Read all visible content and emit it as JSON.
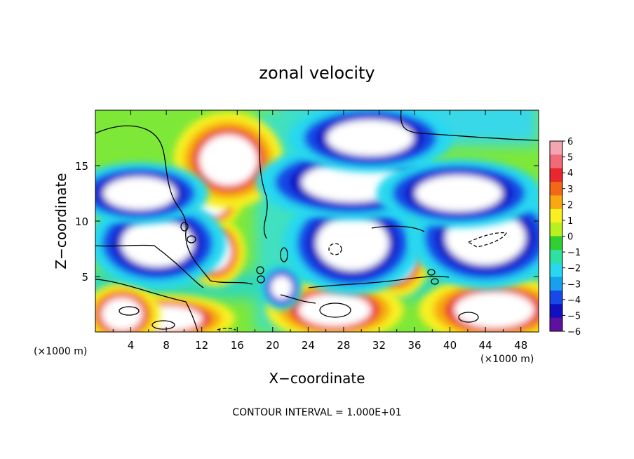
{
  "chart_data": {
    "type": "heatmap",
    "title": "zonal velocity",
    "xlabel": "X−coordinate",
    "ylabel": "Z−coordinate",
    "x_unit_left": "(×1000 m)",
    "x_unit_right": "(×1000 m)",
    "xlim": [
      0,
      50
    ],
    "ylim": [
      0,
      20
    ],
    "x_ticks": [
      4,
      8,
      12,
      16,
      20,
      24,
      28,
      32,
      36,
      40,
      44,
      48
    ],
    "y_ticks": [
      5,
      10,
      15
    ],
    "colorbar": {
      "labels": [
        6,
        5,
        4,
        3,
        2,
        1,
        0,
        -1,
        -2,
        -3,
        -4,
        -5,
        -6
      ],
      "label_text": [
        "6",
        "5",
        "4",
        "3",
        "2",
        "1",
        "0",
        "−1",
        "−2",
        "−3",
        "−4",
        "−5",
        "−6"
      ],
      "colors": [
        "#f4a6b0",
        "#f06a78",
        "#e8282c",
        "#f06818",
        "#f8a810",
        "#f8f020",
        "#b8f020",
        "#30d030",
        "#30e0a0",
        "#28d8f0",
        "#18a0f0",
        "#1848e8",
        "#1010c0",
        "#6010a0"
      ],
      "range": [
        -6,
        6
      ]
    },
    "footer": "CONTOUR INTERVAL = 1.000E+01",
    "regions": [
      {
        "kind": "pos",
        "x": 8,
        "z": 1.2,
        "rx": 5,
        "rz": 1.4
      },
      {
        "kind": "pos",
        "x": 3,
        "z": 1.6,
        "rx": 2.8,
        "rz": 1.8
      },
      {
        "kind": "pos",
        "x": 13.5,
        "z": 7.2,
        "rx": 2.2,
        "rz": 2.0
      },
      {
        "kind": "pos",
        "x": 27,
        "z": 2.0,
        "rx": 5,
        "rz": 1.8
      },
      {
        "kind": "pos",
        "x": 34,
        "z": 6.5,
        "rx": 2.4,
        "rz": 2.2
      },
      {
        "kind": "pos",
        "x": 45,
        "z": 2.0,
        "rx": 5.5,
        "rz": 2.0
      },
      {
        "kind": "pos",
        "x": 13,
        "z": 11.5,
        "rx": 2.2,
        "rz": 1.4
      },
      {
        "kind": "pos",
        "x": 15,
        "z": 15.5,
        "rx": 4.0,
        "rz": 2.8
      },
      {
        "kind": "neg",
        "x": 7,
        "z": 8.0,
        "rx": 5.0,
        "rz": 2.6
      },
      {
        "kind": "neg",
        "x": 5,
        "z": 12.5,
        "rx": 5.0,
        "rz": 1.8
      },
      {
        "kind": "neg",
        "x": 29,
        "z": 8.0,
        "rx": 5.0,
        "rz": 3.0
      },
      {
        "kind": "neg",
        "x": 29,
        "z": 13.5,
        "rx": 7.0,
        "rz": 2.2
      },
      {
        "kind": "neg",
        "x": 44,
        "z": 8.5,
        "rx": 5.5,
        "rz": 3.0
      },
      {
        "kind": "neg",
        "x": 41,
        "z": 12.5,
        "rx": 6.0,
        "rz": 2.0
      },
      {
        "kind": "neg",
        "x": 21,
        "z": 4.0,
        "rx": 1.5,
        "rz": 1.3
      },
      {
        "kind": "neg",
        "x": 31,
        "z": 17.5,
        "rx": 6.0,
        "rz": 2.0
      }
    ],
    "contour": "solid and dashed black contour lines"
  }
}
